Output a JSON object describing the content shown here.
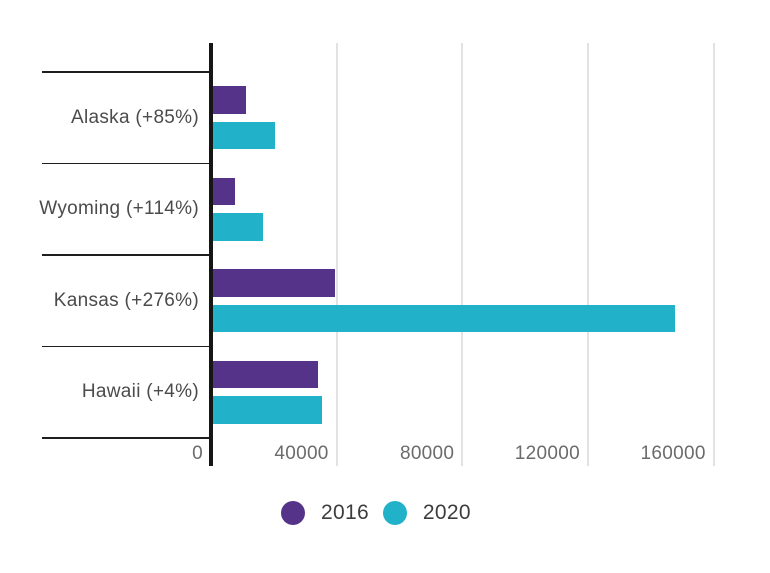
{
  "chart_data": {
    "type": "bar",
    "orientation": "horizontal",
    "title": "",
    "categories": [
      "Alaska (+85%)",
      "Wyoming (+114%)",
      "Kansas (+276%)",
      "Hawaii (+4%)"
    ],
    "series": [
      {
        "name": "2016",
        "color": "#543389",
        "values": [
          11000,
          7700,
          39300,
          34000
        ]
      },
      {
        "name": "2020",
        "color": "#21b2c9",
        "values": [
          20350,
          16500,
          147700,
          35400
        ]
      }
    ],
    "x_ticks": [
      0,
      40000,
      80000,
      120000,
      160000
    ],
    "tick_labels": [
      "0",
      "40000",
      "80000",
      "120000",
      "160000"
    ],
    "xlim": [
      0,
      160000
    ],
    "grid": true,
    "legend_position": "bottom",
    "colors": {
      "axis_line": "#161616",
      "separator_line": "#1e1e1e",
      "gridline": "#e2e2e2",
      "category_label": "#4b4b4b",
      "tick_label": "#6b6b6b",
      "legend_label": "#3d3d3d",
      "background": "#ffffff"
    }
  }
}
